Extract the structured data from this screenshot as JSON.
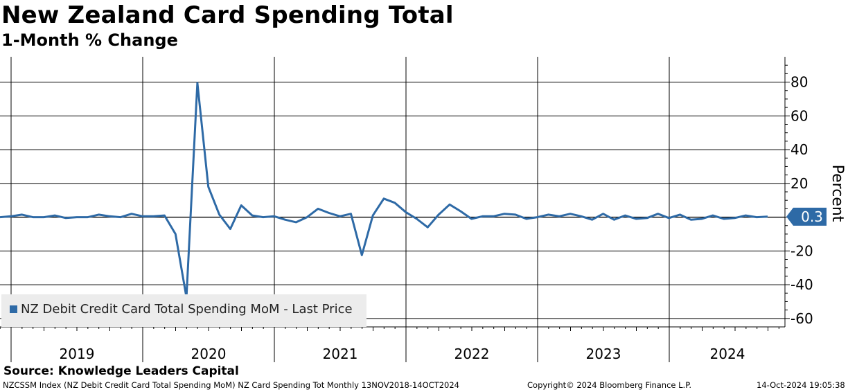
{
  "header": {
    "title": "New Zealand Card Spending Total",
    "subtitle": "1-Month % Change"
  },
  "source": "Source: Knowledge Leaders Capital",
  "footer": {
    "left": "NZCSSM Index (NZ Debit Credit Card Total Spending MoM) NZ Card Spending Tot  Monthly 13NOV2018-14OCT2024",
    "center": "Copyright© 2024 Bloomberg Finance L.P.",
    "right": "14-Oct-2024 19:05:38"
  },
  "colors": {
    "series": "#2e6aa6",
    "last_badge": "#2e6aa6",
    "legend_bg": "#ececec",
    "grid": "#000000"
  },
  "chart_data": {
    "type": "line",
    "ylabel": "Percent",
    "ylim": [
      -65,
      95
    ],
    "yticks": [
      80,
      60,
      40,
      20,
      -20,
      -40,
      -60
    ],
    "zero_label": "0.3",
    "year_labels": [
      "2019",
      "2020",
      "2021",
      "2022",
      "2023",
      "2024"
    ],
    "grid": true,
    "legend_position": "bottom-left",
    "last_value": 0.3,
    "series": [
      {
        "name": "NZ Debit Credit Card Total Spending MoM - Last Price",
        "x": [
          "2018-11",
          "2018-12",
          "2019-01",
          "2019-02",
          "2019-03",
          "2019-04",
          "2019-05",
          "2019-06",
          "2019-07",
          "2019-08",
          "2019-09",
          "2019-10",
          "2019-11",
          "2019-12",
          "2020-01",
          "2020-02",
          "2020-03",
          "2020-04",
          "2020-05",
          "2020-06",
          "2020-07",
          "2020-08",
          "2020-09",
          "2020-10",
          "2020-11",
          "2020-12",
          "2021-01",
          "2021-02",
          "2021-03",
          "2021-04",
          "2021-05",
          "2021-06",
          "2021-07",
          "2021-08",
          "2021-09",
          "2021-10",
          "2021-11",
          "2021-12",
          "2022-01",
          "2022-02",
          "2022-03",
          "2022-04",
          "2022-05",
          "2022-06",
          "2022-07",
          "2022-08",
          "2022-09",
          "2022-10",
          "2022-11",
          "2022-12",
          "2023-01",
          "2023-02",
          "2023-03",
          "2023-04",
          "2023-05",
          "2023-06",
          "2023-07",
          "2023-08",
          "2023-09",
          "2023-10",
          "2023-11",
          "2023-12",
          "2024-01",
          "2024-02",
          "2024-03",
          "2024-04",
          "2024-05",
          "2024-06",
          "2024-07",
          "2024-08",
          "2024-09"
        ],
        "values": [
          0.0,
          0.5,
          1.5,
          0.0,
          0.0,
          1.0,
          -0.5,
          0.0,
          0.0,
          1.5,
          0.5,
          0.0,
          2.0,
          0.5,
          0.5,
          1.0,
          -10.0,
          -47.5,
          79.5,
          18.0,
          1.5,
          -7.0,
          7.0,
          1.0,
          0.0,
          0.5,
          -1.5,
          -3.0,
          0.0,
          5.0,
          2.5,
          0.5,
          2.0,
          -22.5,
          1.0,
          11.0,
          8.5,
          3.0,
          -1.0,
          -6.0,
          1.5,
          7.5,
          3.5,
          -1.0,
          0.5,
          0.5,
          2.0,
          1.5,
          -1.0,
          0.0,
          1.5,
          0.5,
          2.0,
          0.5,
          -1.5,
          2.0,
          -1.5,
          1.0,
          -1.0,
          -0.5,
          2.0,
          -0.5,
          1.5,
          -1.5,
          -1.0,
          1.0,
          -1.0,
          -0.5,
          1.0,
          0.0,
          0.3
        ]
      }
    ]
  }
}
